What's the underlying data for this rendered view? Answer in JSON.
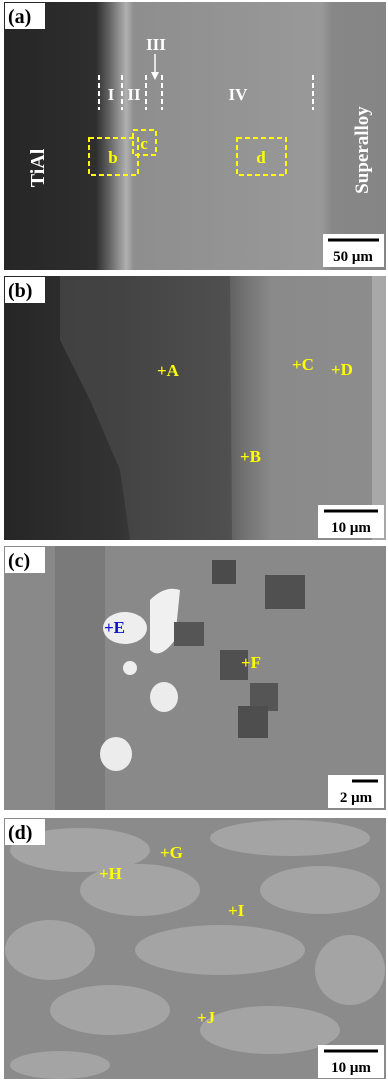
{
  "panels": [
    {
      "label": "(a)",
      "scale_bar": "50 μm",
      "regions": [
        "TiAl",
        "Superalloy"
      ],
      "zones": [
        "I",
        "II",
        "III",
        "IV"
      ],
      "boxes": [
        "b",
        "c",
        "d"
      ]
    },
    {
      "label": "(b)",
      "scale_bar": "10 μm",
      "points": [
        "+A",
        "+B",
        "+C",
        "+D"
      ]
    },
    {
      "label": "(c)",
      "scale_bar": "2 μm",
      "points": [
        "+E",
        "+F"
      ]
    },
    {
      "label": "(d)",
      "scale_bar": "10 μm",
      "points": [
        "+G",
        "+H",
        "+I",
        "+J"
      ]
    }
  ]
}
